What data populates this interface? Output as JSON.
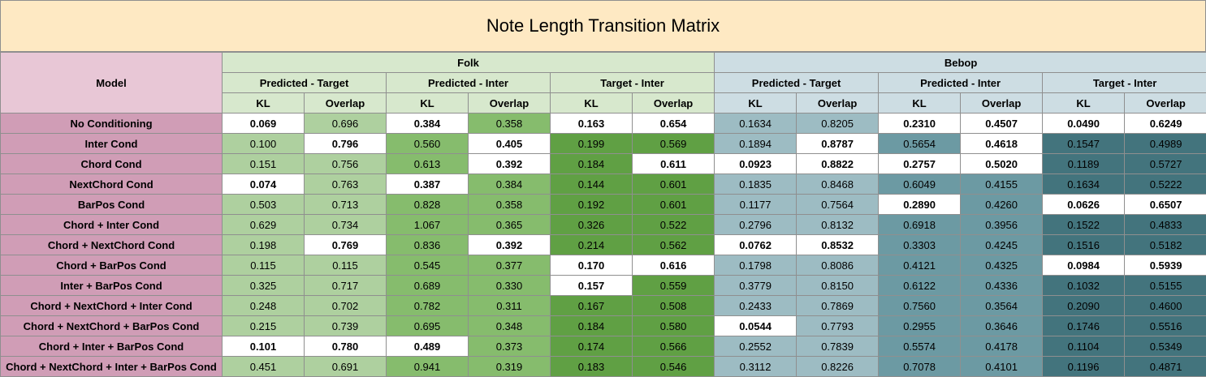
{
  "title": "Note Length Transition Matrix",
  "header": {
    "model": "Model",
    "groups": [
      "Folk",
      "Bebop"
    ],
    "subgroups": [
      "Predicted - Target",
      "Predicted - Inter",
      "Target - Inter",
      "Predicted - Target",
      "Predicted - Inter",
      "Target - Inter"
    ],
    "metrics": [
      "KL",
      "Overlap",
      "KL",
      "Overlap",
      "KL",
      "Overlap",
      "KL",
      "Overlap",
      "KL",
      "Overlap",
      "KL",
      "Overlap"
    ]
  },
  "colors": {
    "title_bg": "#fee9c3",
    "model_header_bg": "#e8c7d6",
    "model_bg": "#d09db6",
    "folk_header_bg": "#d7e8cd",
    "bebop_header_bg": "#cddde3",
    "best_cell_bg": "#ffffff",
    "column_fills": [
      "#aed09f",
      "#aed09f",
      "#86bc6d",
      "#86bc6d",
      "#60a044",
      "#60a044",
      "#9dbcc3",
      "#9dbcc3",
      "#6c9aa3",
      "#6c9aa3",
      "#43747d",
      "#43747d"
    ]
  },
  "rows": [
    {
      "model": "No Conditioning",
      "values": [
        "0.069",
        "0.696",
        "0.384",
        "0.358",
        "0.163",
        "0.654",
        "0.1634",
        "0.8205",
        "0.2310",
        "0.4507",
        "0.0490",
        "0.6249"
      ],
      "bold": [
        0,
        2,
        4,
        5,
        8,
        9,
        10,
        11
      ]
    },
    {
      "model": "Inter Cond",
      "values": [
        "0.100",
        "0.796",
        "0.560",
        "0.405",
        "0.199",
        "0.569",
        "0.1894",
        "0.8787",
        "0.5654",
        "0.4618",
        "0.1547",
        "0.4989"
      ],
      "bold": [
        1,
        3,
        7,
        9
      ]
    },
    {
      "model": "Chord Cond",
      "values": [
        "0.151",
        "0.756",
        "0.613",
        "0.392",
        "0.184",
        "0.611",
        "0.0923",
        "0.8822",
        "0.2757",
        "0.5020",
        "0.1189",
        "0.5727"
      ],
      "bold": [
        3,
        5,
        6,
        7,
        8,
        9
      ]
    },
    {
      "model": "NextChord Cond",
      "values": [
        "0.074",
        "0.763",
        "0.387",
        "0.384",
        "0.144",
        "0.601",
        "0.1835",
        "0.8468",
        "0.6049",
        "0.4155",
        "0.1634",
        "0.5222"
      ],
      "bold": [
        0,
        2
      ]
    },
    {
      "model": "BarPos Cond",
      "values": [
        "0.503",
        "0.713",
        "0.828",
        "0.358",
        "0.192",
        "0.601",
        "0.1177",
        "0.7564",
        "0.2890",
        "0.4260",
        "0.0626",
        "0.6507"
      ],
      "bold": [
        8,
        10,
        11
      ]
    },
    {
      "model": "Chord + Inter Cond",
      "values": [
        "0.629",
        "0.734",
        "1.067",
        "0.365",
        "0.326",
        "0.522",
        "0.2796",
        "0.8132",
        "0.6918",
        "0.3956",
        "0.1522",
        "0.4833"
      ],
      "bold": []
    },
    {
      "model": "Chord + NextChord Cond",
      "values": [
        "0.198",
        "0.769",
        "0.836",
        "0.392",
        "0.214",
        "0.562",
        "0.0762",
        "0.8532",
        "0.3303",
        "0.4245",
        "0.1516",
        "0.5182"
      ],
      "bold": [
        1,
        3,
        6,
        7
      ]
    },
    {
      "model": "Chord + BarPos Cond",
      "values": [
        "0.115",
        "0.115",
        "0.545",
        "0.377",
        "0.170",
        "0.616",
        "0.1798",
        "0.8086",
        "0.4121",
        "0.4325",
        "0.0984",
        "0.5939"
      ],
      "bold": [
        4,
        5,
        10,
        11
      ]
    },
    {
      "model": "Inter + BarPos Cond",
      "values": [
        "0.325",
        "0.717",
        "0.689",
        "0.330",
        "0.157",
        "0.559",
        "0.3779",
        "0.8150",
        "0.6122",
        "0.4336",
        "0.1032",
        "0.5155"
      ],
      "bold": [
        4
      ]
    },
    {
      "model": "Chord + NextChord + Inter Cond",
      "values": [
        "0.248",
        "0.702",
        "0.782",
        "0.311",
        "0.167",
        "0.508",
        "0.2433",
        "0.7869",
        "0.7560",
        "0.3564",
        "0.2090",
        "0.4600"
      ],
      "bold": []
    },
    {
      "model": "Chord + NextChord + BarPos Cond",
      "values": [
        "0.215",
        "0.739",
        "0.695",
        "0.348",
        "0.184",
        "0.580",
        "0.0544",
        "0.7793",
        "0.2955",
        "0.3646",
        "0.1746",
        "0.5516"
      ],
      "bold": [
        6
      ]
    },
    {
      "model": "Chord + Inter + BarPos Cond",
      "values": [
        "0.101",
        "0.780",
        "0.489",
        "0.373",
        "0.174",
        "0.566",
        "0.2552",
        "0.7839",
        "0.5574",
        "0.4178",
        "0.1104",
        "0.5349"
      ],
      "bold": [
        0,
        1,
        2
      ]
    },
    {
      "model": "Chord + NextChord + Inter + BarPos Cond",
      "values": [
        "0.451",
        "0.691",
        "0.941",
        "0.319",
        "0.183",
        "0.546",
        "0.3112",
        "0.8226",
        "0.7078",
        "0.4101",
        "0.1196",
        "0.4871"
      ],
      "bold": []
    }
  ]
}
